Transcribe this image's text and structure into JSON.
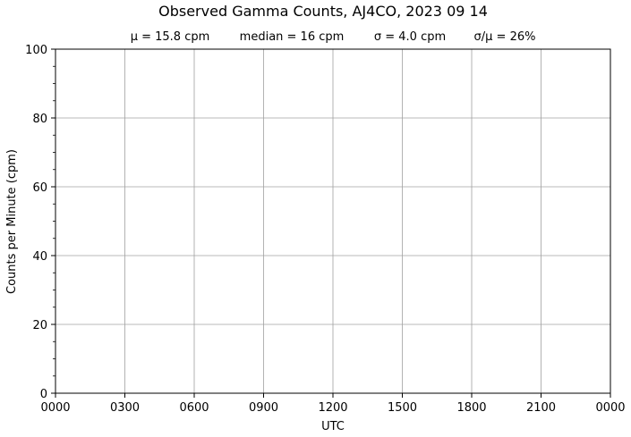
{
  "chart_data": {
    "type": "line",
    "title": "Observed Gamma Counts, AJ4CO, 2023 09 14",
    "stats": [
      "μ = 15.8 cpm",
      "median = 16 cpm",
      "σ = 4.0 cpm",
      "σ/μ = 26%"
    ],
    "xlabel": "UTC",
    "ylabel": "Counts per Minute (cpm)",
    "x_ticks": [
      "0000",
      "0300",
      "0600",
      "0900",
      "1200",
      "1500",
      "1800",
      "2100",
      "0000"
    ],
    "x_range_hours": [
      0,
      24
    ],
    "ylim": [
      0,
      100
    ],
    "y_ticks": [
      0,
      20,
      40,
      60,
      80,
      100
    ],
    "grid": true,
    "legend": "none",
    "line_color": "#00008b",
    "series": [
      {
        "sampling": "one value per minute",
        "x_start": "0000",
        "x_step_minutes": 1,
        "values": []
      }
    ]
  }
}
